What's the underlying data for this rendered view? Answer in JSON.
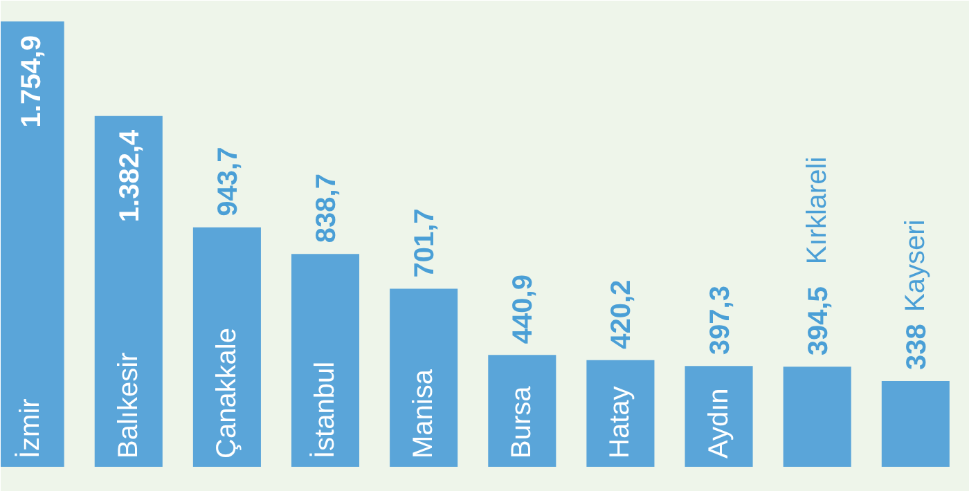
{
  "chart_data": {
    "type": "bar",
    "categories": [
      "İzmir",
      "Balıkesir",
      "Çanakkale",
      "İstanbul",
      "Manisa",
      "Bursa",
      "Hatay",
      "Aydın",
      "Kırklareli",
      "Kayseri"
    ],
    "values": [
      1754.9,
      1382.4,
      943.7,
      838.7,
      701.7,
      440.9,
      420.2,
      397.3,
      394.5,
      338
    ],
    "value_labels": [
      "1.754,9",
      "1.382,4",
      "943,7",
      "838,7",
      "701,7",
      "440,9",
      "420,2",
      "397,3",
      "394,5",
      "338"
    ],
    "color": "#5aa5d9",
    "grid": false
  }
}
